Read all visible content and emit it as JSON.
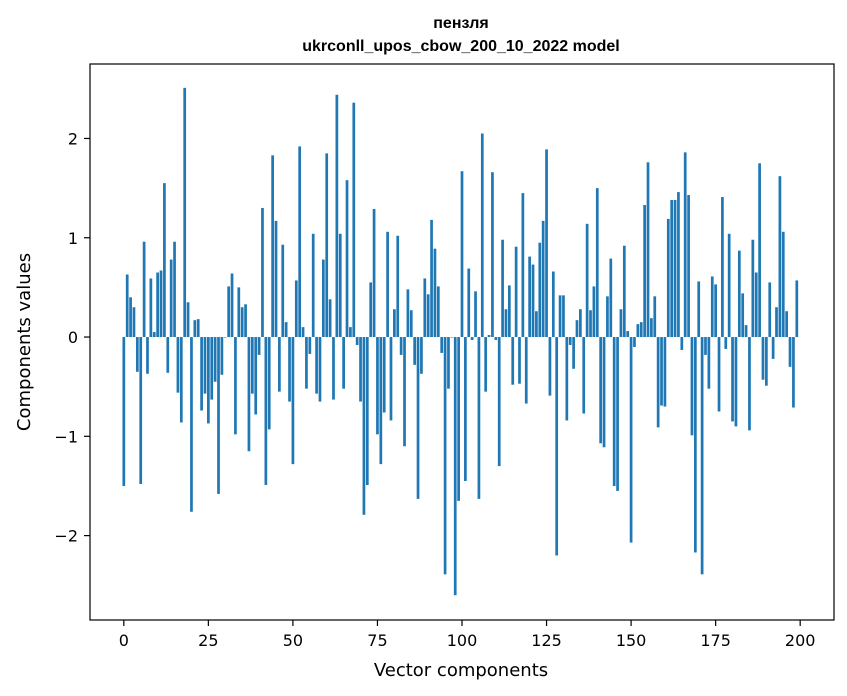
{
  "chart_data": {
    "type": "bar",
    "title": "пензля",
    "subtitle": "ukrconll_upos_cbow_200_10_2022 model",
    "xlabel": "Vector components",
    "ylabel": "Components values",
    "xlim": [
      -10,
      210
    ],
    "ylim": [
      -2.85,
      2.75
    ],
    "xticks": [
      0,
      25,
      50,
      75,
      100,
      125,
      150,
      175,
      200
    ],
    "yticks": [
      -2,
      -1,
      0,
      1,
      2
    ],
    "ytick_labels": [
      "−2",
      "−1",
      "0",
      "1",
      "2"
    ],
    "grid": false,
    "bar_color": "#1f77b4",
    "x": [
      0,
      1,
      2,
      3,
      4,
      5,
      6,
      7,
      8,
      9,
      10,
      11,
      12,
      13,
      14,
      15,
      16,
      17,
      18,
      19,
      20,
      21,
      22,
      23,
      24,
      25,
      26,
      27,
      28,
      29,
      30,
      31,
      32,
      33,
      34,
      35,
      36,
      37,
      38,
      39,
      40,
      41,
      42,
      43,
      44,
      45,
      46,
      47,
      48,
      49,
      50,
      51,
      52,
      53,
      54,
      55,
      56,
      57,
      58,
      59,
      60,
      61,
      62,
      63,
      64,
      65,
      66,
      67,
      68,
      69,
      70,
      71,
      72,
      73,
      74,
      75,
      76,
      77,
      78,
      79,
      80,
      81,
      82,
      83,
      84,
      85,
      86,
      87,
      88,
      89,
      90,
      91,
      92,
      93,
      94,
      95,
      96,
      97,
      98,
      99,
      100,
      101,
      102,
      103,
      104,
      105,
      106,
      107,
      108,
      109,
      110,
      111,
      112,
      113,
      114,
      115,
      116,
      117,
      118,
      119,
      120,
      121,
      122,
      123,
      124,
      125,
      126,
      127,
      128,
      129,
      130,
      131,
      132,
      133,
      134,
      135,
      136,
      137,
      138,
      139,
      140,
      141,
      142,
      143,
      144,
      145,
      146,
      147,
      148,
      149,
      150,
      151,
      152,
      153,
      154,
      155,
      156,
      157,
      158,
      159,
      160,
      161,
      162,
      163,
      164,
      165,
      166,
      167,
      168,
      169,
      170,
      171,
      172,
      173,
      174,
      175,
      176,
      177,
      178,
      179,
      180,
      181,
      182,
      183,
      184,
      185,
      186,
      187,
      188,
      189,
      190,
      191,
      192,
      193,
      194,
      195,
      196,
      197,
      198,
      199
    ],
    "values": [
      -1.5,
      0.63,
      0.4,
      0.3,
      -0.35,
      -1.48,
      0.96,
      -0.37,
      0.59,
      0.05,
      0.65,
      0.67,
      1.55,
      -0.36,
      0.78,
      0.96,
      -0.56,
      -0.86,
      2.51,
      0.35,
      -1.76,
      0.17,
      0.18,
      -0.74,
      -0.57,
      -0.87,
      -0.63,
      -0.45,
      -1.58,
      -0.38,
      0.0,
      0.51,
      0.64,
      -0.98,
      0.5,
      0.3,
      0.33,
      -1.15,
      -0.57,
      -0.78,
      -0.18,
      1.3,
      -1.49,
      -0.93,
      1.83,
      1.17,
      -0.55,
      0.93,
      0.15,
      -0.65,
      -1.28,
      0.57,
      1.92,
      0.1,
      -0.52,
      -0.17,
      1.04,
      -0.57,
      -0.65,
      0.78,
      1.85,
      0.38,
      -0.63,
      2.44,
      1.04,
      -0.52,
      1.58,
      0.1,
      2.36,
      -0.08,
      -0.65,
      -1.79,
      -1.49,
      0.55,
      1.29,
      -0.98,
      -1.28,
      -0.76,
      1.06,
      -0.84,
      0.28,
      1.02,
      -0.18,
      -1.1,
      0.48,
      0.27,
      -0.28,
      -1.63,
      -0.37,
      0.59,
      0.43,
      1.18,
      0.89,
      0.51,
      -0.16,
      -2.39,
      -0.52,
      0.0,
      -2.6,
      -1.65,
      1.67,
      -1.45,
      0.69,
      -0.03,
      0.46,
      -1.63,
      2.05,
      -0.55,
      0.02,
      1.66,
      -0.03,
      -1.3,
      0.98,
      0.28,
      0.52,
      -0.48,
      0.91,
      -0.47,
      1.45,
      -0.67,
      0.81,
      0.73,
      0.26,
      0.95,
      1.17,
      1.89,
      -0.59,
      0.66,
      -2.2,
      0.42,
      0.42,
      -0.84,
      -0.08,
      -0.32,
      0.17,
      0.28,
      -0.77,
      1.14,
      0.27,
      0.51,
      1.5,
      -1.07,
      -1.11,
      0.41,
      0.79,
      -1.5,
      -1.55,
      0.28,
      0.92,
      0.06,
      -2.07,
      -0.1,
      0.13,
      0.15,
      1.33,
      1.76,
      0.19,
      0.41,
      -0.91,
      -0.69,
      -0.7,
      1.19,
      1.38,
      1.38,
      1.46,
      -0.13,
      1.86,
      1.43,
      -0.99,
      -2.17,
      0.56,
      -2.39,
      -0.18,
      -0.52,
      0.61,
      0.53,
      -0.75,
      1.41,
      -0.12,
      1.04,
      -0.85,
      -0.9,
      0.87,
      0.44,
      0.12,
      -0.94,
      0.98,
      0.65,
      1.75,
      -0.43,
      -0.49,
      0.55,
      -0.22,
      0.3,
      1.62,
      1.06,
      0.26,
      -0.3,
      -0.71,
      0.57
    ]
  }
}
